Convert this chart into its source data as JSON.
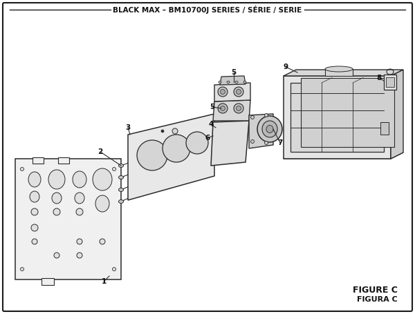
{
  "title": "BLACK MAX – BM10700J SERIES / SÉRIE / SERIE",
  "figure_label1": "FIGURE C",
  "figure_label2": "FIGURA C",
  "bg_color": "#ffffff",
  "border_color": "#1a1a1a",
  "line_color": "#2a2a2a",
  "fill_light": "#f0f0f0",
  "fill_mid": "#e0e0e0",
  "fill_dark": "#c8c8c8"
}
